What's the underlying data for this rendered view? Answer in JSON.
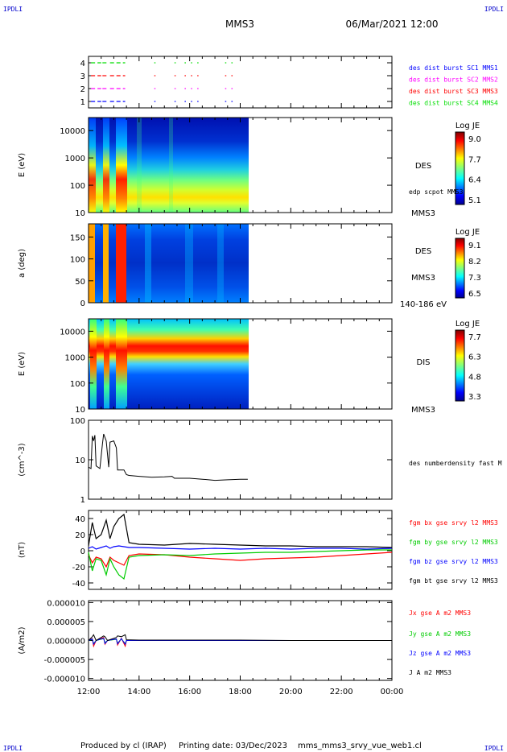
{
  "header": {
    "corner_left": "IPDLI",
    "corner_right": "IPDLI",
    "spacecraft": "MMS3",
    "datetime": "06/Mar/2021 12:00"
  },
  "footer": {
    "produced_by": "Produced by cl (IRAP)",
    "printing_date": "Printing date: 03/Dec/2023",
    "filename": "mms_mms3_srvy_vue_web1.cl",
    "corner_left": "IPDLI",
    "corner_right": "IPDLI"
  },
  "colors": {
    "mms1": "#0000ff",
    "mms2": "#ff00ff",
    "mms3": "#ff0000",
    "mms4": "#00dd00",
    "bx": "#ff0000",
    "by": "#00cc00",
    "bz": "#0000ff",
    "bt": "#000000"
  },
  "chart_data": [
    {
      "type": "scatter",
      "id": "burst",
      "ylabel": "",
      "ylim": [
        0.5,
        4.5
      ],
      "yticks": [
        "1",
        "2",
        "3",
        "4"
      ],
      "legend": [
        "des dist burst SC1 MMS1",
        "des dist burst SC2 MMS2",
        "des dist burst SC3 MMS3",
        "des dist burst SC4 MMS4"
      ],
      "segments_hours": [
        [
          12.1,
          12.5
        ],
        [
          12.55,
          12.75
        ],
        [
          12.85,
          13.45
        ],
        [
          14.6,
          14.65
        ],
        [
          15.4,
          15.45
        ],
        [
          15.8,
          15.85
        ],
        [
          16.05,
          16.1
        ],
        [
          16.3,
          16.35
        ],
        [
          17.4,
          17.45
        ],
        [
          17.65,
          17.7
        ]
      ]
    },
    {
      "type": "heatmap",
      "id": "des-energy",
      "ylabel": "E (eV)",
      "yscale": "log",
      "ylim": [
        10,
        30000
      ],
      "yticks": [
        "10",
        "100",
        "1000",
        "10000"
      ],
      "colorbar": {
        "title": "Log JE",
        "ticks": [
          "9.0",
          "7.7",
          "6.4",
          "5.1"
        ]
      },
      "labels": [
        "DES",
        "edp scpot MMS3",
        "MMS3"
      ]
    },
    {
      "type": "heatmap",
      "id": "des-pitch",
      "ylabel": "a (deg)",
      "ylim": [
        0,
        180
      ],
      "yticks": [
        "0",
        "50",
        "100",
        "150"
      ],
      "colorbar": {
        "title": "Log JE",
        "ticks": [
          "9.1",
          "8.2",
          "7.3",
          "6.5"
        ]
      },
      "labels": [
        "DES",
        "MMS3",
        "140-186 eV"
      ]
    },
    {
      "type": "heatmap",
      "id": "dis-energy",
      "ylabel": "E (eV)",
      "yscale": "log",
      "ylim": [
        10,
        30000
      ],
      "yticks": [
        "10",
        "100",
        "1000",
        "10000"
      ],
      "colorbar": {
        "title": "Log JE",
        "ticks": [
          "7.7",
          "6.3",
          "4.8",
          "3.3"
        ]
      },
      "labels": [
        "DIS",
        "MMS3"
      ]
    },
    {
      "type": "line",
      "id": "density",
      "ylabel": "(cm^-3)",
      "yscale": "log",
      "ylim": [
        1,
        100
      ],
      "yticks": [
        "1",
        "10",
        "100"
      ],
      "legend": [
        "des numberdensity fast M"
      ],
      "x": [
        12.0,
        12.1,
        12.15,
        12.2,
        12.25,
        12.3,
        12.45,
        12.55,
        12.6,
        12.7,
        12.8,
        12.85,
        13.0,
        13.1,
        13.15,
        13.4,
        13.5,
        13.6,
        14.0,
        14.5,
        15.0,
        15.3,
        15.4,
        16.0,
        16.5,
        17.0,
        17.5,
        18.0,
        18.3
      ],
      "values": [
        6.5,
        6.0,
        40,
        30,
        42,
        7.0,
        6.0,
        25,
        45,
        30,
        6.5,
        28,
        30,
        20,
        5.5,
        5.5,
        4.2,
        4.0,
        3.8,
        3.6,
        3.7,
        3.8,
        3.4,
        3.4,
        3.2,
        3.0,
        3.1,
        3.2,
        3.2
      ]
    },
    {
      "type": "line",
      "id": "bfield",
      "ylabel": "(nT)",
      "ylim": [
        -48,
        50
      ],
      "yticks": [
        "-40",
        "-20",
        "0",
        "20",
        "40"
      ],
      "legend": [
        "fgm bx gse srvy l2 MMS3",
        "fgm by gse srvy l2 MMS3",
        "fgm bz gse srvy l2 MMS3",
        "fgm bt gse srvy l2 MMS3"
      ],
      "x": [
        12.0,
        12.15,
        12.3,
        12.5,
        12.7,
        12.85,
        13.0,
        13.2,
        13.4,
        13.6,
        14.0,
        15.0,
        16.0,
        17.0,
        18.0,
        19.0,
        20.0,
        21.0,
        22.0,
        23.0,
        24.0
      ],
      "series": [
        {
          "values": [
            -5,
            -15,
            -8,
            -10,
            -20,
            -8,
            -12,
            -15,
            -18,
            -6,
            -4,
            -5,
            -8,
            -10,
            -12,
            -10,
            -9,
            -8,
            -6,
            -4,
            -2
          ]
        },
        {
          "values": [
            -2,
            -25,
            -10,
            -12,
            -30,
            -10,
            -20,
            -30,
            -35,
            -8,
            -6,
            -5,
            -6,
            -4,
            -3,
            -2,
            -2,
            -1,
            0,
            1,
            1
          ]
        },
        {
          "values": [
            3,
            5,
            2,
            4,
            6,
            3,
            5,
            6,
            5,
            4,
            4,
            3,
            2,
            3,
            2,
            3,
            2,
            3,
            3,
            2,
            3
          ]
        },
        {
          "values": [
            6,
            35,
            15,
            20,
            38,
            15,
            30,
            40,
            45,
            10,
            8,
            7,
            9,
            8,
            7,
            6,
            6,
            5,
            5,
            5,
            4
          ]
        }
      ]
    },
    {
      "type": "line",
      "id": "current",
      "ylabel": "(A/m2)",
      "ylim": [
        -1.05e-05,
        1.05e-05
      ],
      "yticks": [
        "-0.000010",
        "-0.000005",
        "0.000000",
        "0.000005",
        "0.000010"
      ],
      "legend": [
        "Jx gse A m2 MMS3",
        "Jy gse A m2 MMS3",
        "Jz gse A m2 MMS3",
        "J A m2 MMS3"
      ],
      "x": [
        12.0,
        12.15,
        12.2,
        12.3,
        12.6,
        12.65,
        12.75,
        13.1,
        13.15,
        13.3,
        13.45,
        13.5,
        14.0,
        15.0,
        16.0,
        17.0,
        18.0,
        20.0,
        22.0,
        24.0
      ],
      "series": [
        {
          "values": [
            0,
            5e-07,
            -1.5e-06,
            0,
            8e-07,
            -1e-06,
            0,
            4e-07,
            -1.2e-06,
            6e-07,
            -1.5e-06,
            0,
            0,
            0,
            0,
            0,
            0,
            0,
            0,
            0
          ]
        },
        {
          "values": [
            0,
            3e-07,
            -8e-07,
            0,
            5e-07,
            -6e-07,
            0,
            3e-07,
            -7e-07,
            4e-07,
            -8e-07,
            0,
            0,
            0,
            0,
            0,
            0,
            0,
            0,
            0
          ]
        },
        {
          "values": [
            0,
            4e-07,
            -1e-06,
            0,
            6e-07,
            -8e-07,
            0,
            4e-07,
            -9e-07,
            5e-07,
            -1e-06,
            0,
            0,
            0,
            0,
            0,
            0,
            0,
            0,
            0
          ]
        },
        {
          "values": [
            0,
            1e-06,
            1.5e-06,
            0,
            1.2e-06,
            1e-06,
            0,
            8e-07,
            1.2e-06,
            1e-06,
            1.5e-06,
            2e-07,
            1e-07,
            1e-07,
            1e-07,
            1e-07,
            1e-07,
            0,
            0,
            0
          ]
        }
      ]
    }
  ],
  "xaxis": {
    "range_hours": [
      12,
      24
    ],
    "tick_labels": [
      "12:00",
      "14:00",
      "16:00",
      "18:00",
      "20:00",
      "22:00",
      "00:00"
    ]
  }
}
